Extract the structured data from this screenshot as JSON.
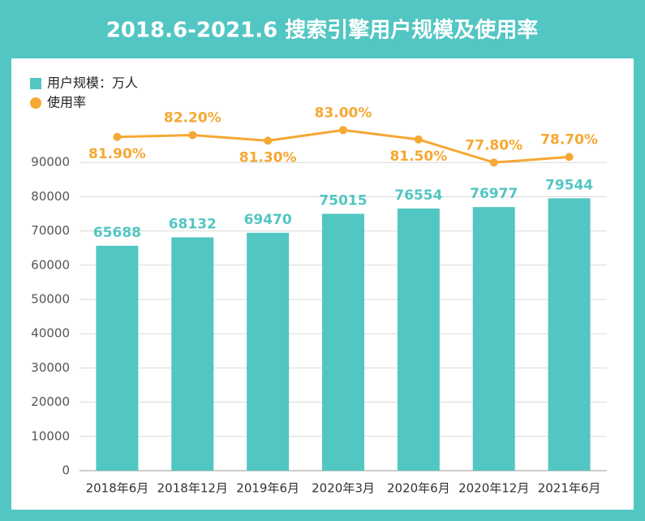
{
  "chart_data": {
    "type": "bar",
    "title": "2018.6-2021.6 搜索引擎用户规模及使用率",
    "categories": [
      "2018年6月",
      "2018年12月",
      "2019年6月",
      "2020年3月",
      "2020年6月",
      "2020年12月",
      "2021年6月"
    ],
    "series": [
      {
        "name": "用户规模：万人",
        "type": "bar",
        "color": "#52c6c2",
        "values": [
          65688,
          68132,
          69470,
          75015,
          76554,
          76977,
          79544
        ]
      },
      {
        "name": "使用率",
        "type": "line",
        "axis": "y2",
        "color": "#f5a833",
        "values": [
          81.9,
          82.2,
          81.3,
          83.0,
          81.5,
          77.8,
          78.7
        ],
        "value_labels": [
          "81.90%",
          "82.20%",
          "81.30%",
          "83.00%",
          "81.50%",
          "77.80%",
          "78.70%"
        ]
      }
    ],
    "ylim": [
      0,
      100000
    ],
    "yticks": [
      0,
      10000,
      20000,
      30000,
      40000,
      50000,
      60000,
      70000,
      80000,
      90000
    ],
    "y2lim": [
      28.4,
      83.3
    ],
    "grid": true,
    "legend": "top-left"
  }
}
